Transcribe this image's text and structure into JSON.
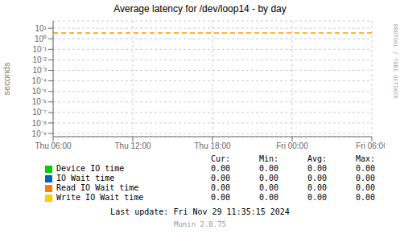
{
  "chart_data": {
    "type": "line",
    "title": "Average latency for /dev/loop14 - by day",
    "y_label": "seconds",
    "log": "y",
    "grid": true,
    "categories": [
      "Thu 06:00",
      "Thu 12:00",
      "Thu 18:00",
      "Fri 00:00",
      "Fri 06:00"
    ],
    "ylim": [
      5e-10,
      50
    ],
    "yticks": [
      {
        "value": 1e-09,
        "label": "10⁻⁹"
      },
      {
        "value": 1e-08,
        "label": "10⁻⁸"
      },
      {
        "value": 1e-07,
        "label": "10⁻⁷"
      },
      {
        "value": 1e-06,
        "label": "10⁻⁶"
      },
      {
        "value": 1e-05,
        "label": "10⁻⁵"
      },
      {
        "value": 0.0001,
        "label": "10⁻⁴"
      },
      {
        "value": 0.001,
        "label": "10⁻³"
      },
      {
        "value": 0.01,
        "label": "10⁻²"
      },
      {
        "value": 0.1,
        "label": "10⁻¹"
      },
      {
        "value": 1,
        "label": "10⁰"
      },
      {
        "value": 10,
        "label": "10¹"
      }
    ],
    "reference_lines": [
      {
        "y": 3.5,
        "color": "#ff9900",
        "line_style": "dashed"
      }
    ],
    "series": [
      {
        "name": "Device IO time",
        "color": "#00cc00",
        "values": [
          null,
          null,
          null,
          null,
          null
        ],
        "stats": [
          "0.00",
          "0.00",
          "0.00",
          "0.00"
        ]
      },
      {
        "name": "IO Wait time",
        "color": "#0066b3",
        "values": [
          null,
          null,
          null,
          null,
          null
        ],
        "stats": [
          "0.00",
          "0.00",
          "0.00",
          "0.00"
        ]
      },
      {
        "name": "Read IO Wait time",
        "color": "#ff8000",
        "values": [
          null,
          null,
          null,
          null,
          null
        ],
        "stats": [
          "0.00",
          "0.00",
          "0.00",
          "0.00"
        ]
      },
      {
        "name": "Write IO Wait time",
        "color": "#ffcc00",
        "values": [
          null,
          null,
          null,
          null,
          null
        ],
        "stats": [
          "0.00",
          "0.00",
          "0.00",
          "0.00"
        ]
      }
    ],
    "table_headers": [
      "Cur:",
      "Min:",
      "Avg:",
      "Max:"
    ],
    "annotations": {
      "watermark": "RRDTOOL / TOBI OETIKER",
      "footer": "Last update: Fri Nov 29 11:35:15 2024",
      "version": "Munin 2.0.75"
    }
  }
}
